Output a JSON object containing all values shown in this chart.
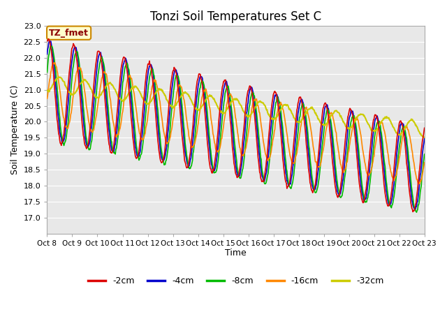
{
  "title": "Tonzi Soil Temperatures Set C",
  "xlabel": "Time",
  "ylabel": "Soil Temperature (C)",
  "ylim": [
    16.5,
    23.0
  ],
  "yticks": [
    17.0,
    17.5,
    18.0,
    18.5,
    19.0,
    19.5,
    20.0,
    20.5,
    21.0,
    21.5,
    22.0,
    22.5,
    23.0
  ],
  "xtick_labels": [
    "Oct 8",
    "Oct 9",
    "Oct 10",
    "Oct 11",
    "Oct 12",
    "Oct 13",
    "Oct 14",
    "Oct 15",
    "Oct 16",
    "Oct 17",
    "Oct 18",
    "Oct 19",
    "Oct 20",
    "Oct 21",
    "Oct 22",
    "Oct 23"
  ],
  "colors": {
    "-2cm": "#dd0000",
    "-4cm": "#0000cc",
    "-8cm": "#00bb00",
    "-16cm": "#ff8800",
    "-32cm": "#cccc00"
  },
  "legend_labels": [
    "-2cm",
    "-4cm",
    "-8cm",
    "-16cm",
    "-32cm"
  ],
  "annotation_text": "TZ_fmet",
  "annotation_bg": "#ffffcc",
  "annotation_border": "#cc8800",
  "plot_bg": "#e8e8e8",
  "n_points": 720,
  "title_fontsize": 12,
  "label_fontsize": 9,
  "tick_fontsize": 8
}
